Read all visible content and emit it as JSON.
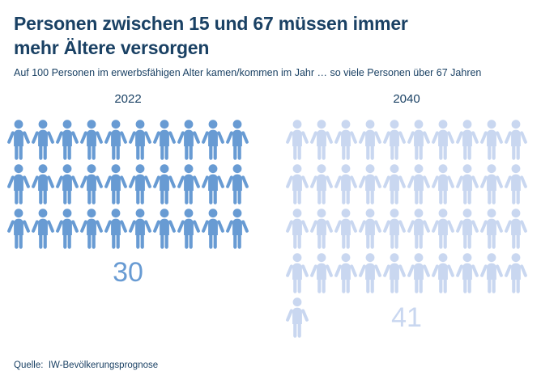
{
  "header": {
    "title": "Personen zwischen 15 und 67 müssen immer mehr Ältere versorgen",
    "subtitle": "Auf 100 Personen im erwerbsfähigen Alter kamen/kommen im Jahr … so viele Personen über 67 Jahren"
  },
  "chart_data": {
    "type": "bar",
    "style": "pictogram",
    "icon": "person-icon",
    "icons_per_row": 10,
    "categories": [
      "2022",
      "2040"
    ],
    "values": [
      30,
      41
    ],
    "series": [
      {
        "name": "2022",
        "value": 30,
        "color": "#689bd3"
      },
      {
        "name": "2040",
        "value": 41,
        "color": "#c9d7f0"
      }
    ],
    "title": "Personen zwischen 15 und 67 müssen immer mehr Ältere versorgen",
    "xlabel": "",
    "ylabel": "Personen über 67 Jahren",
    "legend": "none",
    "grid": "off"
  },
  "footer": {
    "source": "Quelle:  IW-Bevölkerungsprognose"
  },
  "colors": {
    "text_navy": "#1a4164",
    "icon_2022": "#689bd3",
    "icon_2040": "#c9d7f0",
    "background": "#ffffff"
  }
}
